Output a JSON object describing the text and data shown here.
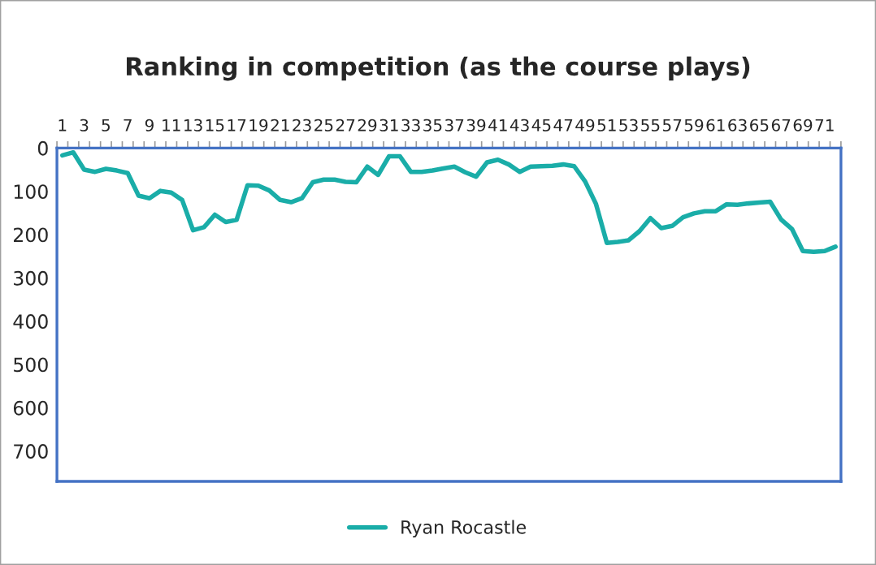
{
  "chart_data": {
    "type": "line",
    "title": "Ranking in competition (as the course plays)",
    "categories": [
      "1",
      null,
      "3",
      null,
      "5",
      null,
      "7",
      null,
      "9",
      null,
      "11",
      null,
      "13",
      null,
      "15",
      null,
      "17",
      null,
      "19",
      null,
      "21",
      null,
      "23",
      null,
      "25",
      null,
      "27",
      null,
      "29",
      null,
      "31",
      null,
      "33",
      null,
      "35",
      null,
      "37",
      null,
      "39",
      null,
      "41",
      null,
      "43",
      null,
      "45",
      null,
      "47",
      null,
      "49",
      null,
      "51",
      null,
      "53",
      null,
      "55",
      null,
      "57",
      null,
      "59",
      null,
      "61",
      null,
      "63",
      null,
      "65",
      null,
      "67",
      null,
      "69",
      null,
      "71",
      null
    ],
    "series": [
      {
        "name": "Ryan Rocastle",
        "color": "#1aada8",
        "values": [
          17,
          10,
          50,
          55,
          48,
          52,
          58,
          110,
          116,
          99,
          103,
          120,
          190,
          183,
          154,
          171,
          166,
          86,
          87,
          98,
          120,
          125,
          116,
          79,
          73,
          73,
          78,
          79,
          43,
          62,
          19,
          19,
          55,
          55,
          52,
          47,
          43,
          56,
          66,
          33,
          27,
          38,
          55,
          43,
          42,
          41,
          38,
          42,
          77,
          129,
          219,
          217,
          213,
          192,
          162,
          185,
          180,
          160,
          151,
          146,
          146,
          130,
          131,
          128,
          126,
          124,
          165,
          187,
          238,
          240,
          238,
          228
        ]
      }
    ],
    "ylim": [
      770,
      0
    ],
    "yticks": [
      0,
      100,
      200,
      300,
      400,
      500,
      600,
      700
    ],
    "grid": false,
    "legend": "bottom",
    "marker": "none",
    "line_style": "solid"
  }
}
